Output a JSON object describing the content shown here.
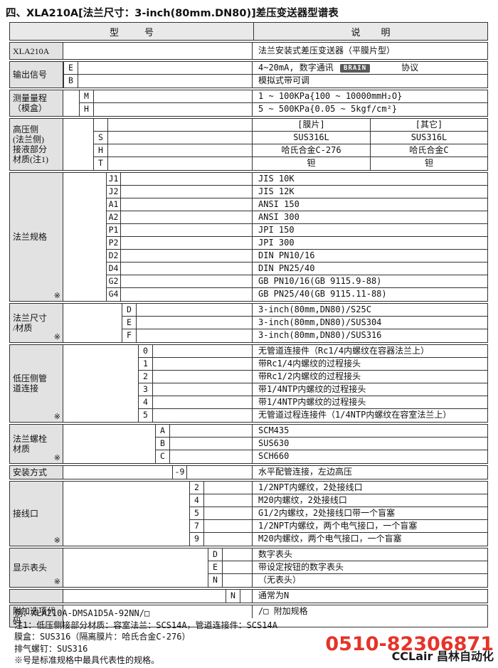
{
  "title": "四、XLA210A[法兰尺寸：3-inch(80mm.DN80)]差压变送器型谱表",
  "table": {
    "star_symbol": "※",
    "header": {
      "model": "型          号",
      "desc": "说        明"
    },
    "sections": [
      {
        "label": "XLA210A",
        "rows": [
          {
            "desc": "法兰安装式差压变送器（平膜片型）"
          }
        ]
      },
      {
        "label": "输出信号",
        "rows": [
          {
            "code": "E",
            "pre": "4~20mA, 数字通讯 ",
            "badge": "BRAIN",
            "post": "协议"
          },
          {
            "code": "B",
            "desc": "模拟式带可调"
          }
        ]
      },
      {
        "label": "测量量程\n（模盒）",
        "rows": [
          {
            "code": "M",
            "desc": "1 ~ 100KPa{100 ~ 10000mmH₂O}"
          },
          {
            "code": "H",
            "desc": "5 ~ 500KPa{0.05 ~ 5kgf/cm²}"
          }
        ]
      },
      {
        "label": "高压侧\n(法兰侧)\n接液部分\n材质(注1)",
        "rows": [
          {
            "code": "",
            "descs": [
              "[膜片]",
              "[其它]"
            ]
          },
          {
            "code": "S",
            "descs": [
              "SUS316L",
              "SUS316L"
            ]
          },
          {
            "code": "H",
            "descs": [
              "哈氏合金C-276",
              "哈氏合金C"
            ]
          },
          {
            "code": "T",
            "descs": [
              "钽",
              "钽"
            ]
          }
        ]
      },
      {
        "label": "法兰规格",
        "starred": true,
        "rows": [
          {
            "code": "J1",
            "desc": "JIS 10K"
          },
          {
            "code": "J2",
            "desc": "JIS 12K"
          },
          {
            "code": "A1",
            "desc": "ANSI 150"
          },
          {
            "code": "A2",
            "desc": "ANSI 300"
          },
          {
            "code": "P1",
            "desc": "JPI 150"
          },
          {
            "code": "P2",
            "desc": "JPI 300"
          },
          {
            "code": "D2",
            "desc": "DIN PN10/16"
          },
          {
            "code": "D4",
            "desc": "DIN PN25/40"
          },
          {
            "code": "G2",
            "desc": "GB PN10/16(GB 9115.9-88)"
          },
          {
            "code": "G4",
            "desc": "GB PN25/40(GB 9115.11-88)"
          }
        ]
      },
      {
        "label": "法兰尺寸\n/材质",
        "starred": true,
        "rows": [
          {
            "code": "D",
            "desc": "3-inch(80mm,DN80)/S25C"
          },
          {
            "code": "E",
            "desc": "3-inch(80mm,DN80)/SUS304"
          },
          {
            "code": "F",
            "desc": "3-inch(80mm,DN80)/SUS316"
          }
        ]
      },
      {
        "label": "低压侧管\n道连接",
        "starred": true,
        "rows": [
          {
            "code": "0",
            "desc": "无管道连接件（Rc1/4内螺纹在容器法兰上）"
          },
          {
            "code": "1",
            "desc": "带Rc1/4内螺纹的过程接头"
          },
          {
            "code": "2",
            "desc": "带Rc1/2内螺纹的过程接头"
          },
          {
            "code": "3",
            "desc": "带1/4NTP内螺纹的过程接头"
          },
          {
            "code": "4",
            "desc": "带1/4NTP内螺纹的过程接头"
          },
          {
            "code": "5",
            "desc": "无管道过程连接件（1/4NTP内螺纹在容室法兰上）"
          }
        ]
      },
      {
        "label": "法兰螺栓\n材质",
        "starred": true,
        "rows": [
          {
            "code": "A",
            "desc": "SCM435"
          },
          {
            "code": "B",
            "desc": "SUS630"
          },
          {
            "code": "C",
            "desc": "SCH660"
          }
        ]
      },
      {
        "label": "安装方式",
        "rows": [
          {
            "code": "-9",
            "desc": "水平配管连接，左边高压"
          }
        ]
      },
      {
        "label": "接线口",
        "starred": true,
        "rows": [
          {
            "code": "2",
            "desc": "1/2NPT内螺纹，2处接线口"
          },
          {
            "code": "4",
            "desc": "M20内螺纹，2处接线口"
          },
          {
            "code": "5",
            "desc": "G1/2内螺纹，2处接线口带一个盲塞"
          },
          {
            "code": "7",
            "desc": "1/2NPT内螺纹，两个电气接口，一个盲塞"
          },
          {
            "code": "9",
            "desc": "M20内螺纹，两个电气接口，一个盲塞"
          }
        ]
      },
      {
        "label": "显示表头",
        "starred": true,
        "rows": [
          {
            "code": "D",
            "desc": "数字表头"
          },
          {
            "code": "E",
            "desc": "带设定按钮的数字表头"
          },
          {
            "code": "N",
            "desc": "（无表头）"
          }
        ]
      },
      {
        "label": "",
        "rows": [
          {
            "code": "N",
            "desc": "通常为N"
          }
        ]
      },
      {
        "label": "附加选项代码",
        "rows": [
          {
            "desc": "/□ 附加规格"
          }
        ]
      }
    ]
  },
  "notes": [
    "例：XLA210A-DMSA1D5A-92NN/□",
    "注1：低压侧接部分材质：容室法兰：SCS14A，管道连接件：SCS14A",
    "膜盒：SUS316（隔离膜片：哈氏合金C-276）",
    "排气螺钉：SUS316",
    "※号是标准规格中最具代表性的规格。"
  ],
  "watermark": {
    "phone": "0510-82306871",
    "name": "CCLair 昌林自动化"
  }
}
